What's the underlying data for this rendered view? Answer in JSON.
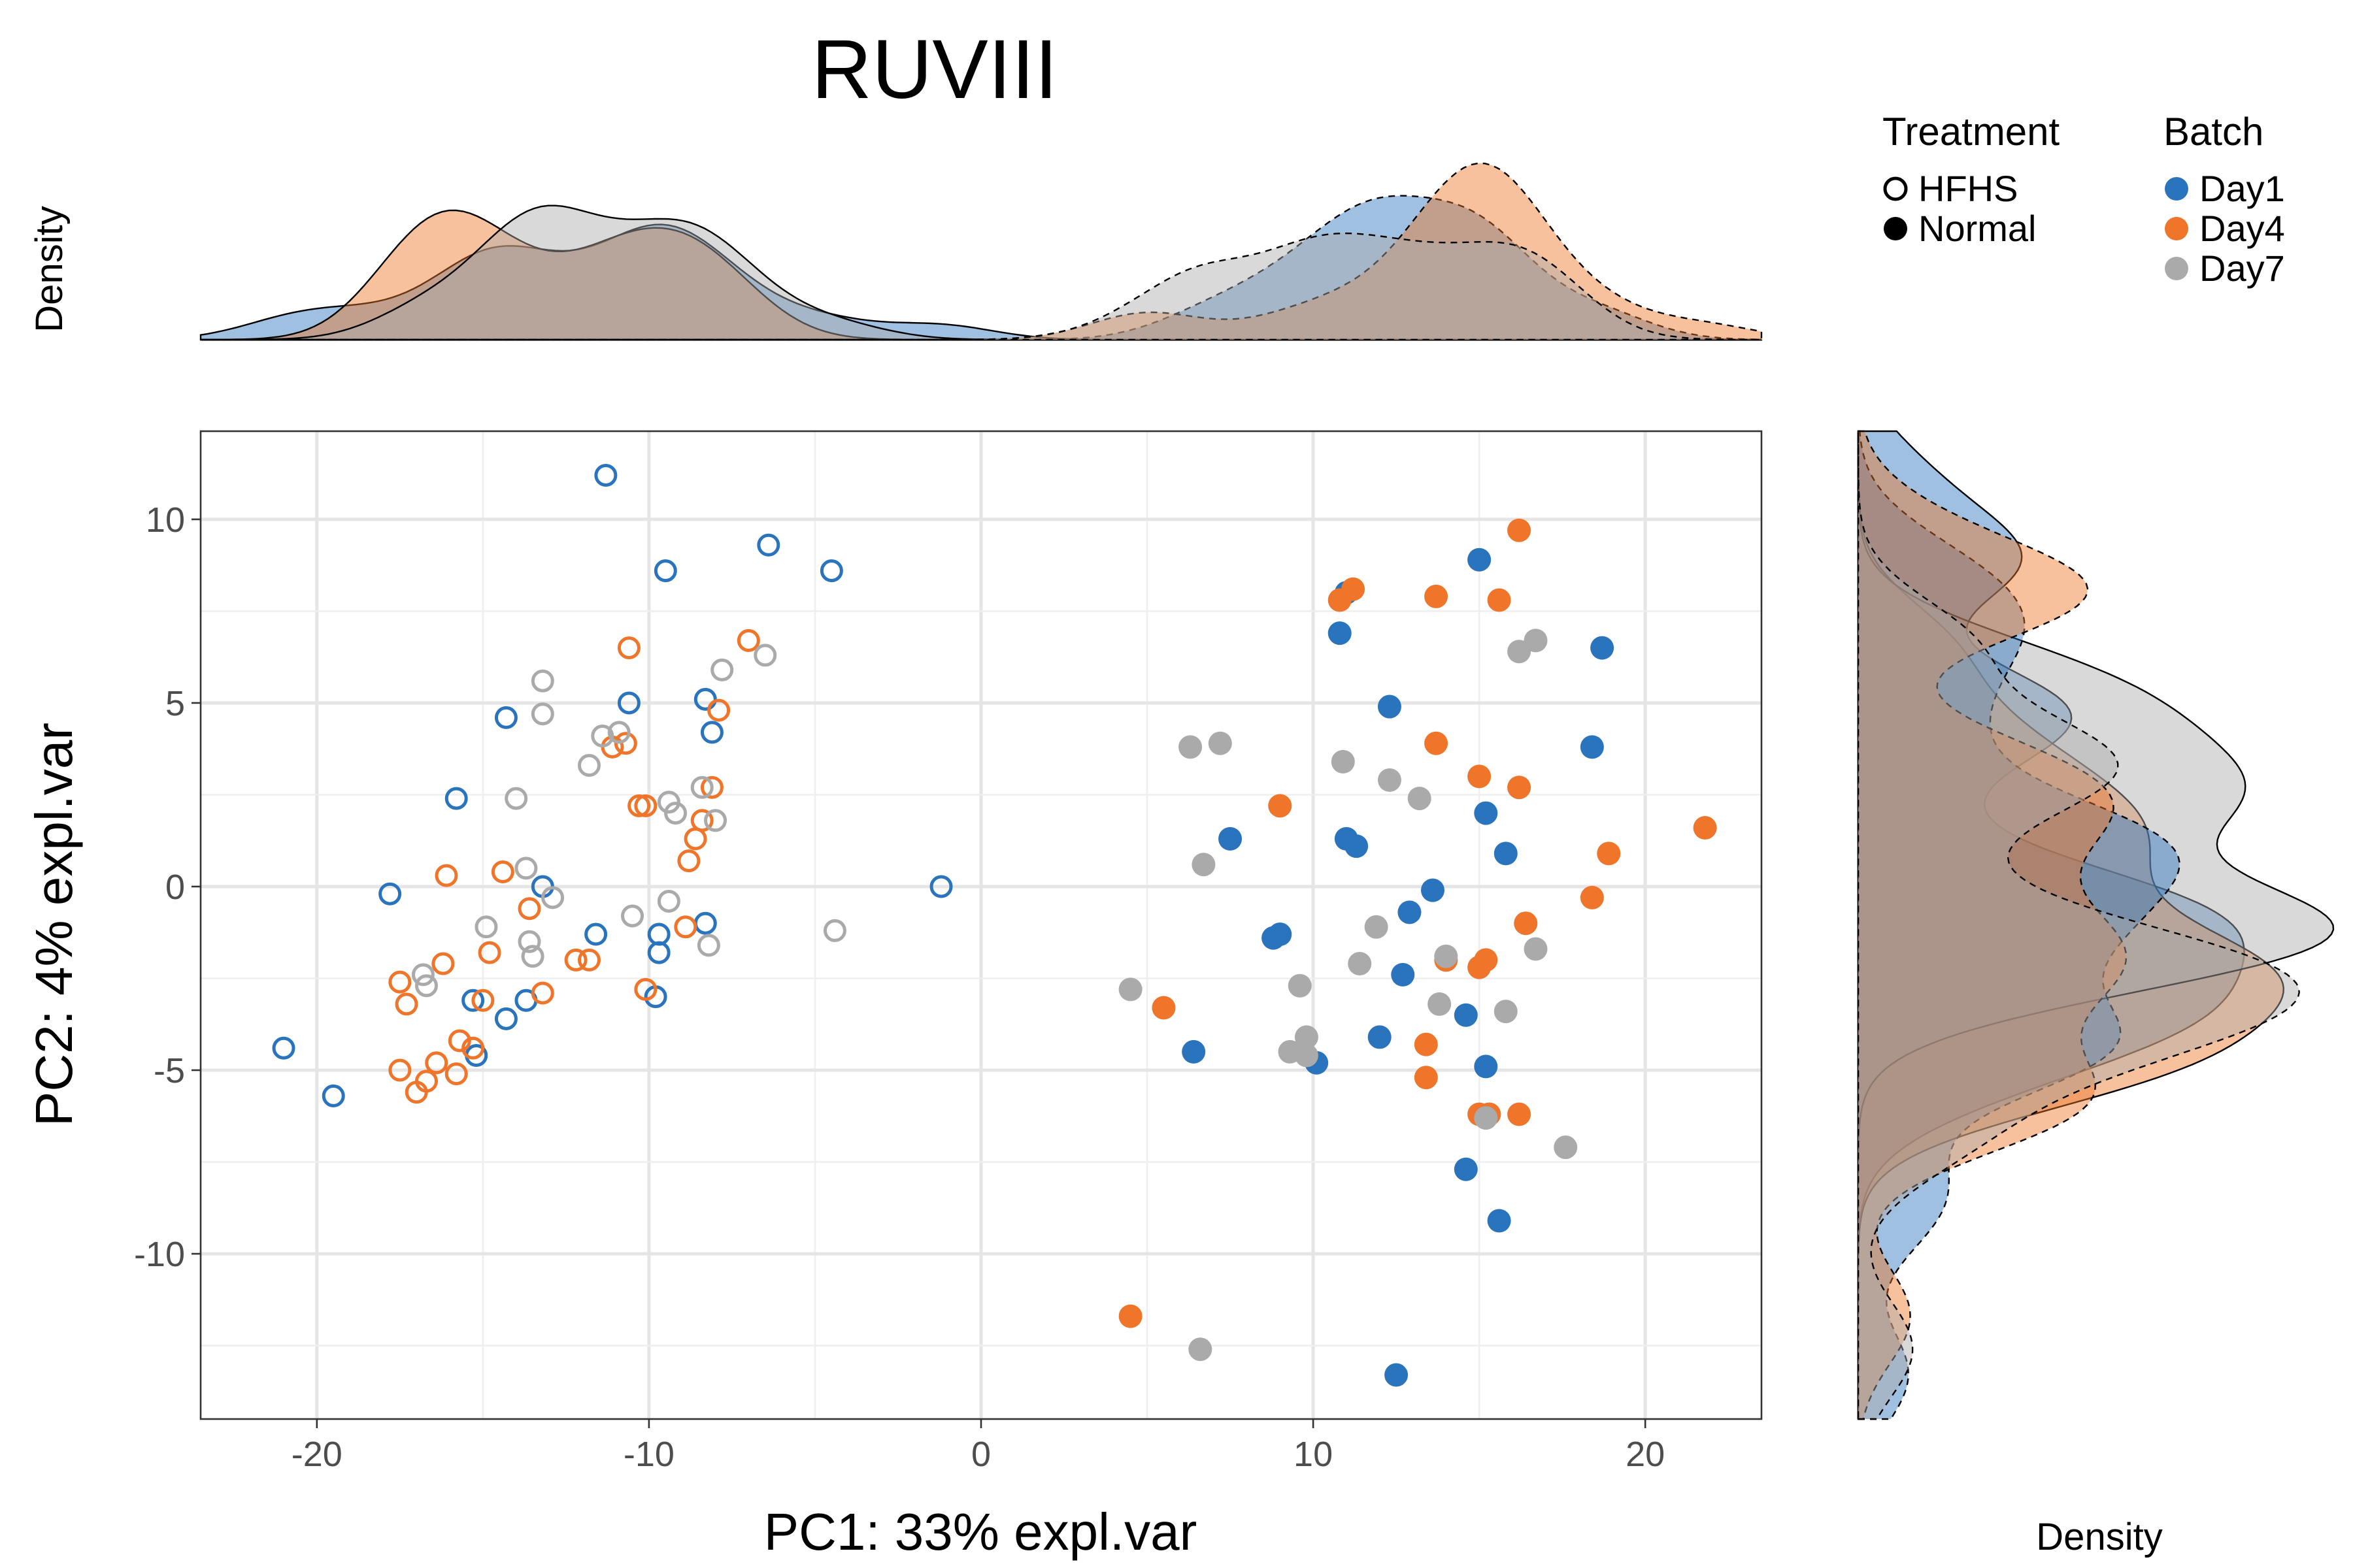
{
  "chart_data": {
    "type": "scatter",
    "title": "RUVIII",
    "xlabel": "PC1: 33% expl.var",
    "ylabel": "PC2: 4% expl.var",
    "xlim": [
      -23.5,
      23.5
    ],
    "ylim": [
      -14.5,
      12.4
    ],
    "xticks": [
      -20,
      -10,
      0,
      10,
      20
    ],
    "xtick_labels": [
      "-20",
      "-10",
      "0",
      "10",
      "20"
    ],
    "yticks": [
      -10,
      -5,
      0,
      5,
      10
    ],
    "ytick_labels": [
      "-10",
      "-5",
      "0",
      "5",
      "10"
    ],
    "grid": true,
    "marginal_top_label": "Density",
    "marginal_right_label": "Density",
    "legend_position": "top-right",
    "legend": {
      "treatment_title": "Treatment",
      "treatment": [
        {
          "label": "HFHS",
          "shape": "open-circle"
        },
        {
          "label": "Normal",
          "shape": "filled-circle"
        }
      ],
      "batch_title": "Batch",
      "batch": [
        {
          "label": "Day1",
          "color": "#2a73bd"
        },
        {
          "label": "Day4",
          "color": "#ee7529"
        },
        {
          "label": "Day7",
          "color": "#aaaaaa"
        }
      ]
    },
    "colors": {
      "Day1": "#2a73bd",
      "Day4": "#ee7529",
      "Day7": "#aaaaaa"
    },
    "series": [
      {
        "batch": "Day1",
        "treatment": "HFHS",
        "points": [
          [
            -11.3,
            11.2
          ],
          [
            -9.5,
            8.6
          ],
          [
            -6.4,
            9.3
          ],
          [
            -4.5,
            8.6
          ],
          [
            -14.3,
            4.6
          ],
          [
            -10.6,
            5.0
          ],
          [
            -8.3,
            5.1
          ],
          [
            -8.1,
            4.2
          ],
          [
            -15.8,
            2.4
          ],
          [
            -17.8,
            -0.2
          ],
          [
            -13.2,
            0.0
          ],
          [
            -11.6,
            -1.3
          ],
          [
            -9.7,
            -1.3
          ],
          [
            -9.7,
            -1.8
          ],
          [
            -8.3,
            -1.0
          ],
          [
            -15.3,
            -3.1
          ],
          [
            -13.7,
            -3.1
          ],
          [
            -14.3,
            -3.6
          ],
          [
            -9.8,
            -3.0
          ],
          [
            -15.2,
            -4.6
          ],
          [
            -21.0,
            -4.4
          ],
          [
            -19.5,
            -5.7
          ],
          [
            -1.2,
            0.0
          ]
        ]
      },
      {
        "batch": "Day4",
        "treatment": "HFHS",
        "points": [
          [
            -10.6,
            6.5
          ],
          [
            -7.0,
            6.7
          ],
          [
            -7.9,
            4.8
          ],
          [
            -11.1,
            3.8
          ],
          [
            -10.7,
            3.9
          ],
          [
            -10.3,
            2.2
          ],
          [
            -10.1,
            2.2
          ],
          [
            -8.1,
            2.7
          ],
          [
            -8.6,
            1.3
          ],
          [
            -8.4,
            1.8
          ],
          [
            -8.8,
            0.7
          ],
          [
            -16.1,
            0.3
          ],
          [
            -14.4,
            0.4
          ],
          [
            -13.6,
            -0.6
          ],
          [
            -8.9,
            -1.1
          ],
          [
            -14.8,
            -1.8
          ],
          [
            -16.2,
            -2.1
          ],
          [
            -12.2,
            -2.0
          ],
          [
            -11.8,
            -2.0
          ],
          [
            -10.1,
            -2.8
          ],
          [
            -17.5,
            -2.6
          ],
          [
            -17.3,
            -3.2
          ],
          [
            -15.0,
            -3.1
          ],
          [
            -13.2,
            -2.9
          ],
          [
            -15.7,
            -4.2
          ],
          [
            -15.3,
            -4.4
          ],
          [
            -17.5,
            -5.0
          ],
          [
            -16.4,
            -4.8
          ],
          [
            -15.8,
            -5.1
          ],
          [
            -16.7,
            -5.3
          ],
          [
            -17.0,
            -5.6
          ]
        ]
      },
      {
        "batch": "Day7",
        "treatment": "HFHS",
        "points": [
          [
            -13.2,
            5.6
          ],
          [
            -13.2,
            4.7
          ],
          [
            -7.8,
            5.9
          ],
          [
            -6.5,
            6.3
          ],
          [
            -11.4,
            4.1
          ],
          [
            -10.9,
            4.2
          ],
          [
            -11.8,
            3.3
          ],
          [
            -14.0,
            2.4
          ],
          [
            -9.4,
            2.3
          ],
          [
            -9.2,
            2.0
          ],
          [
            -8.4,
            2.7
          ],
          [
            -8.0,
            1.8
          ],
          [
            -13.7,
            0.5
          ],
          [
            -12.9,
            -0.3
          ],
          [
            -9.4,
            -0.4
          ],
          [
            -10.5,
            -0.8
          ],
          [
            -4.4,
            -1.2
          ],
          [
            -14.9,
            -1.1
          ],
          [
            -13.6,
            -1.5
          ],
          [
            -13.5,
            -1.9
          ],
          [
            -8.2,
            -1.6
          ],
          [
            -16.8,
            -2.4
          ],
          [
            -16.7,
            -2.7
          ]
        ]
      },
      {
        "batch": "Day1",
        "treatment": "Normal",
        "points": [
          [
            11.0,
            8.0
          ],
          [
            10.8,
            6.9
          ],
          [
            15.0,
            8.9
          ],
          [
            18.7,
            6.5
          ],
          [
            12.3,
            4.9
          ],
          [
            18.4,
            3.8
          ],
          [
            15.2,
            2.0
          ],
          [
            15.8,
            0.9
          ],
          [
            11.0,
            1.3
          ],
          [
            11.3,
            1.1
          ],
          [
            7.5,
            1.3
          ],
          [
            13.6,
            -0.1
          ],
          [
            12.9,
            -0.7
          ],
          [
            8.8,
            -1.4
          ],
          [
            9.0,
            -1.3
          ],
          [
            12.7,
            -2.4
          ],
          [
            14.6,
            -3.5
          ],
          [
            12.0,
            -4.1
          ],
          [
            15.2,
            -4.9
          ],
          [
            6.4,
            -4.5
          ],
          [
            10.1,
            -4.8
          ],
          [
            14.6,
            -7.7
          ],
          [
            15.6,
            -9.1
          ],
          [
            12.5,
            -13.3
          ]
        ]
      },
      {
        "batch": "Day4",
        "treatment": "Normal",
        "points": [
          [
            16.2,
            9.7
          ],
          [
            11.2,
            8.1
          ],
          [
            10.8,
            7.8
          ],
          [
            13.7,
            7.9
          ],
          [
            15.6,
            7.8
          ],
          [
            13.7,
            3.9
          ],
          [
            15.0,
            3.0
          ],
          [
            16.2,
            2.7
          ],
          [
            9.0,
            2.2
          ],
          [
            21.8,
            1.6
          ],
          [
            18.9,
            0.9
          ],
          [
            18.4,
            -0.3
          ],
          [
            16.4,
            -1.0
          ],
          [
            15.2,
            -2.0
          ],
          [
            15.0,
            -2.2
          ],
          [
            14.0,
            -2.0
          ],
          [
            5.5,
            -3.3
          ],
          [
            13.4,
            -4.3
          ],
          [
            13.4,
            -5.2
          ],
          [
            15.0,
            -6.2
          ],
          [
            15.3,
            -6.2
          ],
          [
            16.2,
            -6.2
          ],
          [
            4.5,
            -11.7
          ]
        ]
      },
      {
        "batch": "Day7",
        "treatment": "Normal",
        "points": [
          [
            16.2,
            6.4
          ],
          [
            16.7,
            6.7
          ],
          [
            6.3,
            3.8
          ],
          [
            7.2,
            3.9
          ],
          [
            10.9,
            3.4
          ],
          [
            12.3,
            2.9
          ],
          [
            13.2,
            2.4
          ],
          [
            6.7,
            0.6
          ],
          [
            11.9,
            -1.1
          ],
          [
            16.7,
            -1.7
          ],
          [
            11.4,
            -2.1
          ],
          [
            14.0,
            -1.9
          ],
          [
            9.6,
            -2.7
          ],
          [
            4.5,
            -2.8
          ],
          [
            13.8,
            -3.2
          ],
          [
            15.8,
            -3.4
          ],
          [
            9.8,
            -4.1
          ],
          [
            9.3,
            -4.5
          ],
          [
            9.8,
            -4.6
          ],
          [
            15.2,
            -6.3
          ],
          [
            17.6,
            -7.1
          ],
          [
            6.6,
            -12.6
          ]
        ]
      }
    ]
  }
}
